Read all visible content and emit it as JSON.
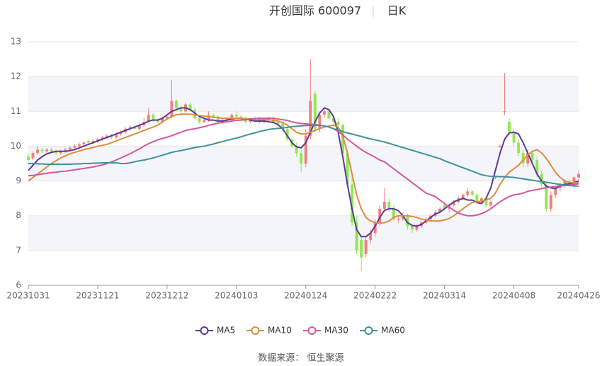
{
  "chart_data": {
    "type": "candlestick",
    "title": "开创国际 600097",
    "subtitle": "日K",
    "source": "数据来源： 恒生聚源",
    "categories": [
      "20231031",
      null,
      null,
      null,
      null,
      null,
      null,
      null,
      null,
      null,
      null,
      null,
      null,
      null,
      null,
      "20231121",
      null,
      null,
      null,
      null,
      null,
      null,
      null,
      null,
      null,
      null,
      null,
      null,
      null,
      null,
      "20231212",
      null,
      null,
      null,
      null,
      null,
      null,
      null,
      null,
      null,
      null,
      null,
      null,
      null,
      null,
      "20240103",
      null,
      null,
      null,
      null,
      null,
      null,
      null,
      null,
      null,
      null,
      null,
      null,
      null,
      null,
      "20240124",
      null,
      null,
      null,
      null,
      null,
      null,
      null,
      null,
      null,
      null,
      null,
      null,
      null,
      null,
      "20240222",
      null,
      null,
      null,
      null,
      null,
      null,
      null,
      null,
      null,
      null,
      null,
      null,
      null,
      null,
      "20240314",
      null,
      null,
      null,
      null,
      null,
      null,
      null,
      null,
      null,
      null,
      null,
      null,
      null,
      null,
      "20240408",
      null,
      null,
      null,
      null,
      null,
      null,
      null,
      null,
      null,
      null,
      null,
      null,
      null,
      "20240426"
    ],
    "open": [
      9.7,
      9.65,
      9.8,
      9.9,
      9.85,
      9.9,
      9.85,
      9.8,
      9.85,
      9.9,
      9.95,
      10.0,
      10.05,
      10.15,
      10.1,
      10.15,
      10.2,
      10.25,
      10.3,
      10.25,
      10.35,
      10.4,
      10.5,
      10.55,
      10.5,
      10.6,
      10.7,
      10.9,
      10.75,
      10.7,
      10.8,
      10.85,
      11.3,
      11.1,
      11.0,
      11.2,
      11.05,
      10.8,
      10.7,
      10.75,
      10.9,
      10.85,
      10.7,
      10.75,
      10.8,
      10.9,
      10.85,
      10.8,
      10.7,
      10.75,
      10.8,
      10.7,
      10.75,
      10.8,
      10.7,
      10.65,
      10.5,
      10.2,
      10.0,
      9.8,
      9.5,
      10.3,
      11.5,
      10.5,
      10.9,
      11.0,
      10.8,
      10.7,
      10.6,
      9.8,
      8.9,
      7.8,
      7.3,
      6.9,
      7.3,
      7.5,
      7.8,
      8.2,
      8.4,
      8.2,
      7.9,
      7.9,
      8.0,
      7.7,
      7.6,
      7.7,
      7.8,
      7.9,
      8.0,
      8.1,
      8.3,
      8.2,
      8.3,
      8.4,
      8.5,
      8.6,
      8.7,
      8.6,
      8.4,
      8.5,
      8.3,
      9.1,
      10.0,
      11.0,
      10.7,
      10.4,
      10.1,
      9.8,
      9.5,
      9.8,
      9.6,
      9.2,
      8.9,
      8.2,
      8.6,
      8.8,
      8.9,
      9.0,
      8.9,
      9.1
    ],
    "close": [
      9.6,
      9.8,
      9.9,
      9.85,
      9.9,
      9.85,
      9.8,
      9.85,
      9.9,
      9.95,
      10.0,
      10.05,
      10.1,
      10.1,
      10.15,
      10.2,
      10.25,
      10.3,
      10.25,
      10.35,
      10.4,
      10.5,
      10.55,
      10.5,
      10.6,
      10.7,
      10.9,
      10.75,
      10.7,
      10.8,
      10.85,
      11.3,
      11.1,
      11.0,
      11.2,
      11.05,
      10.8,
      10.7,
      10.75,
      10.9,
      10.85,
      10.7,
      10.75,
      10.8,
      10.9,
      10.85,
      10.8,
      10.7,
      10.75,
      10.8,
      10.7,
      10.75,
      10.8,
      10.7,
      10.65,
      10.5,
      10.2,
      10.0,
      9.8,
      9.5,
      10.3,
      11.3,
      10.5,
      10.9,
      11.0,
      10.8,
      10.7,
      10.6,
      9.8,
      8.9,
      7.8,
      7.0,
      6.8,
      7.3,
      7.5,
      7.8,
      8.2,
      8.4,
      8.2,
      7.9,
      7.9,
      8.0,
      7.7,
      7.6,
      7.7,
      7.8,
      7.9,
      8.0,
      8.1,
      8.2,
      8.2,
      8.3,
      8.4,
      8.5,
      8.6,
      8.7,
      8.6,
      8.4,
      8.5,
      8.3,
      8.4,
      9.1,
      10.0,
      11.0,
      10.4,
      10.1,
      9.8,
      9.5,
      9.8,
      9.6,
      9.2,
      8.9,
      8.2,
      8.6,
      8.8,
      8.9,
      9.0,
      8.9,
      9.1,
      9.2
    ],
    "high": [
      9.8,
      9.85,
      10.0,
      9.95,
      9.95,
      9.95,
      9.9,
      9.9,
      9.95,
      10.0,
      10.05,
      10.1,
      10.15,
      10.2,
      10.2,
      10.25,
      10.3,
      10.35,
      10.35,
      10.4,
      10.45,
      10.55,
      10.6,
      10.6,
      10.65,
      10.8,
      11.1,
      10.95,
      10.8,
      10.85,
      10.9,
      11.9,
      11.35,
      11.15,
      11.25,
      11.25,
      11.1,
      10.85,
      10.8,
      11.0,
      10.95,
      10.9,
      10.8,
      10.85,
      10.95,
      11.0,
      10.9,
      10.85,
      10.8,
      10.85,
      10.85,
      10.8,
      10.85,
      10.85,
      10.75,
      10.7,
      10.55,
      10.3,
      10.1,
      9.9,
      10.5,
      12.5,
      11.6,
      11.0,
      11.1,
      11.05,
      10.9,
      10.8,
      10.65,
      9.9,
      9.2,
      8.0,
      7.4,
      7.4,
      7.6,
      7.9,
      8.3,
      8.8,
      8.5,
      8.3,
      8.0,
      8.1,
      8.05,
      7.75,
      7.75,
      7.85,
      7.95,
      8.05,
      8.15,
      8.25,
      8.4,
      8.35,
      8.45,
      8.55,
      8.65,
      8.8,
      8.75,
      8.65,
      8.55,
      8.55,
      8.45,
      9.15,
      10.05,
      12.1,
      10.8,
      10.5,
      10.2,
      9.9,
      9.9,
      9.85,
      9.7,
      9.3,
      8.95,
      8.7,
      8.85,
      8.95,
      9.05,
      9.05,
      9.15,
      9.3
    ],
    "low": [
      9.55,
      9.6,
      9.75,
      9.8,
      9.8,
      9.8,
      9.75,
      9.75,
      9.8,
      9.85,
      9.9,
      9.95,
      10.0,
      10.05,
      10.05,
      10.1,
      10.15,
      10.2,
      10.2,
      10.2,
      10.3,
      10.35,
      10.45,
      10.45,
      10.45,
      10.55,
      10.65,
      10.7,
      10.65,
      10.65,
      10.75,
      10.8,
      11.0,
      10.95,
      10.95,
      11.0,
      10.75,
      10.65,
      10.65,
      10.7,
      10.8,
      10.65,
      10.65,
      10.7,
      10.75,
      10.8,
      10.75,
      10.65,
      10.65,
      10.7,
      10.65,
      10.65,
      10.7,
      10.65,
      10.6,
      10.45,
      10.15,
      9.95,
      9.7,
      9.25,
      9.4,
      10.2,
      10.4,
      10.4,
      10.8,
      10.75,
      10.6,
      10.5,
      9.7,
      8.8,
      7.7,
      6.9,
      6.4,
      6.8,
      7.2,
      7.4,
      7.7,
      8.1,
      8.1,
      7.85,
      7.8,
      7.85,
      7.6,
      7.5,
      7.55,
      7.65,
      7.75,
      7.85,
      7.95,
      8.05,
      8.15,
      8.1,
      8.25,
      8.35,
      8.45,
      8.55,
      8.55,
      8.35,
      8.35,
      8.25,
      8.25,
      9.05,
      9.95,
      10.9,
      10.3,
      10.0,
      9.7,
      9.4,
      9.4,
      9.5,
      9.1,
      8.8,
      8.1,
      8.1,
      8.5,
      8.7,
      8.8,
      8.8,
      8.85,
      9.0
    ],
    "up_color": "#ef7f7f",
    "down_color": "#8fe84f",
    "series": [
      {
        "name": "MA5",
        "color": "#5b3a96",
        "values": [
          9.3,
          9.45,
          9.6,
          9.7,
          9.78,
          9.82,
          9.85,
          9.85,
          9.85,
          9.87,
          9.9,
          9.95,
          10.0,
          10.05,
          10.1,
          10.15,
          10.2,
          10.25,
          10.3,
          10.35,
          10.4,
          10.45,
          10.5,
          10.55,
          10.6,
          10.65,
          10.72,
          10.75,
          10.75,
          10.8,
          10.9,
          11.0,
          11.05,
          11.1,
          11.1,
          11.05,
          10.95,
          10.85,
          10.8,
          10.75,
          10.75,
          10.72,
          10.72,
          10.75,
          10.78,
          10.8,
          10.8,
          10.78,
          10.75,
          10.72,
          10.72,
          10.72,
          10.7,
          10.68,
          10.62,
          10.5,
          10.3,
          10.1,
          9.98,
          9.95,
          10.1,
          10.4,
          10.7,
          10.95,
          11.1,
          11.05,
          10.85,
          10.4,
          9.7,
          8.9,
          8.2,
          7.6,
          7.4,
          7.4,
          7.5,
          7.7,
          7.95,
          8.15,
          8.2,
          8.2,
          8.15,
          8.0,
          7.8,
          7.72,
          7.7,
          7.75,
          7.85,
          7.95,
          8.05,
          8.1,
          8.2,
          8.3,
          8.4,
          8.45,
          8.5,
          8.45,
          8.45,
          8.38,
          8.35,
          8.5,
          8.8,
          9.3,
          9.8,
          10.2,
          10.38,
          10.4,
          10.35,
          10.1,
          9.8,
          9.5,
          9.2,
          9.0,
          8.85,
          8.8,
          8.78,
          8.85,
          8.9,
          8.92,
          8.95,
          9.0
        ]
      },
      {
        "name": "MA10",
        "color": "#e08b3e",
        "values": [
          9.0,
          9.1,
          9.2,
          9.3,
          9.4,
          9.5,
          9.58,
          9.66,
          9.72,
          9.78,
          9.82,
          9.86,
          9.9,
          9.93,
          9.96,
          10.0,
          10.02,
          10.05,
          10.1,
          10.15,
          10.2,
          10.25,
          10.3,
          10.35,
          10.4,
          10.45,
          10.5,
          10.55,
          10.6,
          10.7,
          10.78,
          10.85,
          10.9,
          10.92,
          10.92,
          10.92,
          10.9,
          10.88,
          10.86,
          10.85,
          10.83,
          10.82,
          10.8,
          10.8,
          10.8,
          10.8,
          10.8,
          10.79,
          10.78,
          10.78,
          10.77,
          10.76,
          10.76,
          10.74,
          10.72,
          10.68,
          10.6,
          10.5,
          10.4,
          10.35,
          10.35,
          10.4,
          10.45,
          10.5,
          10.55,
          10.58,
          10.6,
          10.55,
          10.3,
          9.8,
          9.2,
          8.6,
          8.2,
          7.95,
          7.85,
          7.8,
          7.78,
          7.8,
          7.85,
          7.95,
          8.0,
          8.0,
          8.0,
          7.98,
          7.95,
          7.9,
          7.88,
          7.85,
          7.85,
          7.85,
          7.88,
          7.92,
          8.0,
          8.1,
          8.2,
          8.3,
          8.38,
          8.4,
          8.42,
          8.45,
          8.5,
          8.65,
          8.9,
          9.1,
          9.25,
          9.35,
          9.45,
          9.6,
          9.75,
          9.85,
          9.9,
          9.8,
          9.65,
          9.45,
          9.25,
          9.1,
          9.0,
          8.95,
          8.95,
          8.95
        ]
      },
      {
        "name": "MA30",
        "color": "#d5579c",
        "values": [
          9.15,
          9.16,
          9.18,
          9.2,
          9.22,
          9.24,
          9.25,
          9.27,
          9.28,
          9.3,
          9.32,
          9.34,
          9.36,
          9.38,
          9.4,
          9.43,
          9.46,
          9.5,
          9.55,
          9.6,
          9.66,
          9.72,
          9.78,
          9.85,
          9.92,
          10.0,
          10.07,
          10.13,
          10.18,
          10.22,
          10.26,
          10.3,
          10.35,
          10.4,
          10.45,
          10.48,
          10.5,
          10.53,
          10.56,
          10.6,
          10.63,
          10.66,
          10.68,
          10.7,
          10.72,
          10.74,
          10.75,
          10.76,
          10.78,
          10.79,
          10.8,
          10.8,
          10.8,
          10.8,
          10.78,
          10.76,
          10.74,
          10.7,
          10.67,
          10.65,
          10.64,
          10.63,
          10.62,
          10.6,
          10.58,
          10.55,
          10.5,
          10.42,
          10.32,
          10.2,
          10.1,
          10.0,
          9.9,
          9.82,
          9.75,
          9.68,
          9.6,
          9.55,
          9.45,
          9.35,
          9.25,
          9.15,
          9.05,
          8.95,
          8.85,
          8.75,
          8.65,
          8.6,
          8.55,
          8.45,
          8.35,
          8.25,
          8.15,
          8.08,
          8.03,
          8.0,
          8.0,
          8.02,
          8.06,
          8.12,
          8.2,
          8.3,
          8.4,
          8.48,
          8.55,
          8.6,
          8.62,
          8.65,
          8.7,
          8.73,
          8.75,
          8.78,
          8.8,
          8.82,
          8.84,
          8.86,
          8.87,
          8.88,
          8.9,
          8.92
        ]
      },
      {
        "name": "MA60",
        "color": "#3e9399",
        "values": [
          9.5,
          9.5,
          9.49,
          9.49,
          9.48,
          9.48,
          9.48,
          9.48,
          9.48,
          9.48,
          9.49,
          9.49,
          9.5,
          9.5,
          9.51,
          9.51,
          9.52,
          9.52,
          9.52,
          9.52,
          9.5,
          9.5,
          9.52,
          9.55,
          9.58,
          9.6,
          9.63,
          9.66,
          9.7,
          9.74,
          9.78,
          9.82,
          9.85,
          9.87,
          9.9,
          9.93,
          9.96,
          9.98,
          10.0,
          10.03,
          10.06,
          10.1,
          10.13,
          10.17,
          10.2,
          10.23,
          10.27,
          10.31,
          10.35,
          10.38,
          10.42,
          10.45,
          10.48,
          10.5,
          10.51,
          10.52,
          10.54,
          10.56,
          10.57,
          10.58,
          10.59,
          10.6,
          10.6,
          10.6,
          10.58,
          10.55,
          10.5,
          10.46,
          10.42,
          10.38,
          10.35,
          10.31,
          10.28,
          10.24,
          10.21,
          10.18,
          10.15,
          10.12,
          10.08,
          10.04,
          10.0,
          9.96,
          9.92,
          9.88,
          9.84,
          9.8,
          9.76,
          9.72,
          9.68,
          9.64,
          9.58,
          9.53,
          9.48,
          9.43,
          9.38,
          9.33,
          9.28,
          9.23,
          9.18,
          9.15,
          9.13,
          9.13,
          9.12,
          9.12,
          9.11,
          9.1,
          9.08,
          9.06,
          9.04,
          9.02,
          9.0,
          8.98,
          8.96,
          8.94,
          8.92,
          8.9,
          8.88,
          8.87,
          8.86,
          8.85
        ]
      }
    ],
    "ylim": [
      6,
      13
    ],
    "yticks": [
      6,
      7,
      8,
      9,
      10,
      11,
      12,
      13
    ],
    "split_area": true,
    "grid": true
  }
}
